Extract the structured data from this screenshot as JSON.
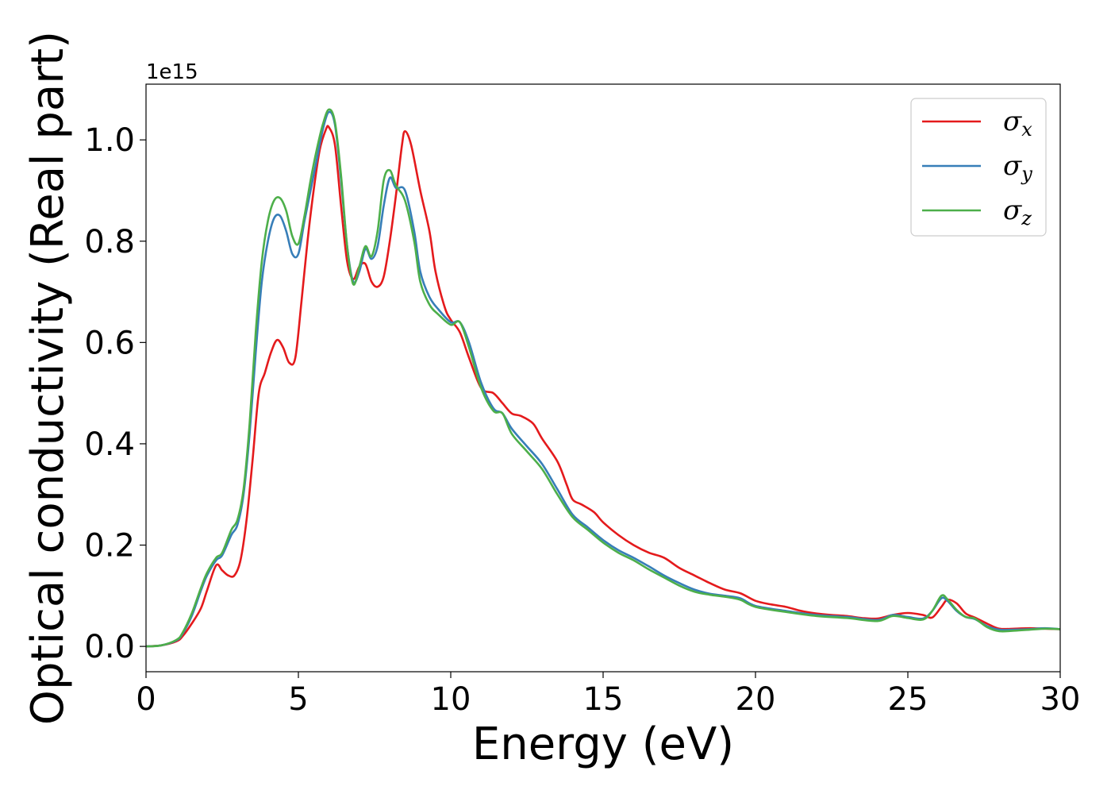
{
  "chart_data": {
    "type": "line",
    "title": "",
    "xlabel": "Energy (eV)",
    "ylabel": "Optical conductivity (Real part)",
    "y_offset_label": "1e15",
    "xlim": [
      0,
      30
    ],
    "ylim": [
      -0.05,
      1.11
    ],
    "xticks": [
      0,
      5,
      10,
      15,
      20,
      25,
      30
    ],
    "xtick_labels": [
      "0",
      "5",
      "10",
      "15",
      "20",
      "25",
      "30"
    ],
    "yticks": [
      0.0,
      0.2,
      0.4,
      0.6,
      0.8,
      1.0
    ],
    "ytick_labels": [
      "0.0",
      "0.2",
      "0.4",
      "0.6",
      "0.8",
      "1.0"
    ],
    "grid": false,
    "legend": "top-right",
    "series": [
      {
        "name": "σ",
        "subscript": "x",
        "color": "#e41a1c",
        "x": [
          0,
          0.5,
          1.0,
          1.2,
          1.5,
          1.8,
          2.0,
          2.3,
          2.5,
          2.7,
          2.9,
          3.1,
          3.3,
          3.5,
          3.7,
          3.9,
          4.1,
          4.3,
          4.5,
          4.7,
          4.9,
          5.1,
          5.3,
          5.5,
          5.7,
          5.9,
          6.0,
          6.2,
          6.4,
          6.6,
          6.8,
          7.0,
          7.2,
          7.4,
          7.6,
          7.8,
          8.0,
          8.2,
          8.4,
          8.5,
          8.7,
          9.0,
          9.3,
          9.5,
          9.8,
          10.0,
          10.3,
          10.6,
          11.0,
          11.4,
          11.7,
          12.0,
          12.3,
          12.7,
          13.0,
          13.5,
          13.8,
          14.0,
          14.3,
          14.7,
          15.0,
          15.5,
          16.0,
          16.5,
          17.0,
          17.5,
          18.0,
          18.5,
          19.0,
          19.5,
          20.0,
          20.5,
          21.0,
          21.5,
          22.0,
          22.5,
          23.0,
          23.5,
          24.0,
          24.5,
          25.0,
          25.5,
          25.8,
          26.1,
          26.3,
          26.6,
          26.9,
          27.2,
          27.6,
          28.0,
          28.5,
          29.0,
          29.5,
          30.0
        ],
        "values": [
          0.0,
          0.002,
          0.01,
          0.02,
          0.045,
          0.075,
          0.11,
          0.16,
          0.15,
          0.14,
          0.14,
          0.17,
          0.25,
          0.37,
          0.5,
          0.54,
          0.58,
          0.605,
          0.59,
          0.56,
          0.57,
          0.68,
          0.8,
          0.9,
          0.98,
          1.02,
          1.025,
          0.99,
          0.87,
          0.76,
          0.725,
          0.75,
          0.755,
          0.72,
          0.71,
          0.73,
          0.8,
          0.89,
          0.99,
          1.017,
          0.99,
          0.9,
          0.82,
          0.74,
          0.67,
          0.645,
          0.62,
          0.57,
          0.51,
          0.5,
          0.48,
          0.46,
          0.455,
          0.44,
          0.41,
          0.365,
          0.32,
          0.29,
          0.28,
          0.265,
          0.245,
          0.22,
          0.2,
          0.185,
          0.175,
          0.155,
          0.14,
          0.125,
          0.112,
          0.105,
          0.09,
          0.083,
          0.078,
          0.07,
          0.065,
          0.062,
          0.06,
          0.056,
          0.055,
          0.062,
          0.066,
          0.062,
          0.057,
          0.078,
          0.092,
          0.085,
          0.065,
          0.057,
          0.045,
          0.035,
          0.035,
          0.036,
          0.035,
          0.034
        ]
      },
      {
        "name": "σ",
        "subscript": "y",
        "color": "#377eb8",
        "x": [
          0,
          0.5,
          1.0,
          1.2,
          1.5,
          1.8,
          2.0,
          2.3,
          2.5,
          2.8,
          3.0,
          3.2,
          3.4,
          3.6,
          3.8,
          4.0,
          4.2,
          4.4,
          4.6,
          4.8,
          5.0,
          5.2,
          5.4,
          5.6,
          5.8,
          6.0,
          6.2,
          6.4,
          6.6,
          6.8,
          7.0,
          7.2,
          7.4,
          7.6,
          7.8,
          8.0,
          8.2,
          8.5,
          8.8,
          9.0,
          9.3,
          9.6,
          10.0,
          10.3,
          10.6,
          11.0,
          11.4,
          11.7,
          12.0,
          12.5,
          13.0,
          13.5,
          14.0,
          14.5,
          15.0,
          15.5,
          16.0,
          16.5,
          17.0,
          17.5,
          18.0,
          18.5,
          19.0,
          19.5,
          20.0,
          21.0,
          22.0,
          23.0,
          24.0,
          24.5,
          25.0,
          25.5,
          25.8,
          26.1,
          26.3,
          26.6,
          26.9,
          27.2,
          27.6,
          28.0,
          28.5,
          29.0,
          29.5,
          30.0
        ],
        "values": [
          0.0,
          0.002,
          0.012,
          0.025,
          0.06,
          0.11,
          0.14,
          0.17,
          0.18,
          0.22,
          0.24,
          0.3,
          0.42,
          0.58,
          0.72,
          0.8,
          0.845,
          0.85,
          0.82,
          0.775,
          0.775,
          0.84,
          0.9,
          0.96,
          1.02,
          1.055,
          1.03,
          0.92,
          0.79,
          0.72,
          0.74,
          0.785,
          0.765,
          0.79,
          0.87,
          0.925,
          0.905,
          0.9,
          0.82,
          0.74,
          0.69,
          0.665,
          0.64,
          0.64,
          0.6,
          0.52,
          0.47,
          0.46,
          0.43,
          0.395,
          0.36,
          0.31,
          0.26,
          0.235,
          0.21,
          0.19,
          0.175,
          0.158,
          0.14,
          0.125,
          0.112,
          0.104,
          0.1,
          0.095,
          0.08,
          0.07,
          0.062,
          0.058,
          0.052,
          0.062,
          0.058,
          0.055,
          0.07,
          0.095,
          0.09,
          0.07,
          0.058,
          0.054,
          0.04,
          0.033,
          0.033,
          0.034,
          0.036,
          0.034
        ]
      },
      {
        "name": "σ",
        "subscript": "z",
        "color": "#4daf4a",
        "x": [
          0,
          0.5,
          1.0,
          1.2,
          1.5,
          1.8,
          2.0,
          2.3,
          2.5,
          2.8,
          3.0,
          3.2,
          3.4,
          3.6,
          3.8,
          4.0,
          4.2,
          4.4,
          4.6,
          4.8,
          5.0,
          5.2,
          5.4,
          5.6,
          5.8,
          6.0,
          6.2,
          6.4,
          6.6,
          6.8,
          7.0,
          7.2,
          7.4,
          7.6,
          7.8,
          8.0,
          8.2,
          8.5,
          8.8,
          9.0,
          9.3,
          9.6,
          10.0,
          10.3,
          10.6,
          11.0,
          11.4,
          11.7,
          12.0,
          12.5,
          13.0,
          13.5,
          14.0,
          14.5,
          15.0,
          15.5,
          16.0,
          16.5,
          17.0,
          17.5,
          18.0,
          18.5,
          19.0,
          19.5,
          20.0,
          21.0,
          22.0,
          23.0,
          24.0,
          24.5,
          25.0,
          25.5,
          25.8,
          26.1,
          26.3,
          26.6,
          26.9,
          27.2,
          27.6,
          28.0,
          28.5,
          29.0,
          29.5,
          30.0
        ],
        "values": [
          0.0,
          0.002,
          0.013,
          0.027,
          0.065,
          0.115,
          0.145,
          0.175,
          0.185,
          0.23,
          0.25,
          0.31,
          0.44,
          0.62,
          0.76,
          0.84,
          0.88,
          0.885,
          0.86,
          0.81,
          0.795,
          0.85,
          0.92,
          0.98,
          1.03,
          1.06,
          1.035,
          0.93,
          0.79,
          0.715,
          0.75,
          0.79,
          0.77,
          0.82,
          0.92,
          0.94,
          0.91,
          0.88,
          0.8,
          0.72,
          0.675,
          0.655,
          0.635,
          0.64,
          0.59,
          0.51,
          0.465,
          0.46,
          0.42,
          0.385,
          0.35,
          0.3,
          0.255,
          0.23,
          0.205,
          0.185,
          0.17,
          0.152,
          0.136,
          0.12,
          0.108,
          0.102,
          0.098,
          0.092,
          0.078,
          0.068,
          0.06,
          0.056,
          0.05,
          0.06,
          0.056,
          0.053,
          0.07,
          0.1,
          0.093,
          0.072,
          0.058,
          0.055,
          0.038,
          0.03,
          0.031,
          0.033,
          0.035,
          0.034
        ]
      }
    ]
  }
}
